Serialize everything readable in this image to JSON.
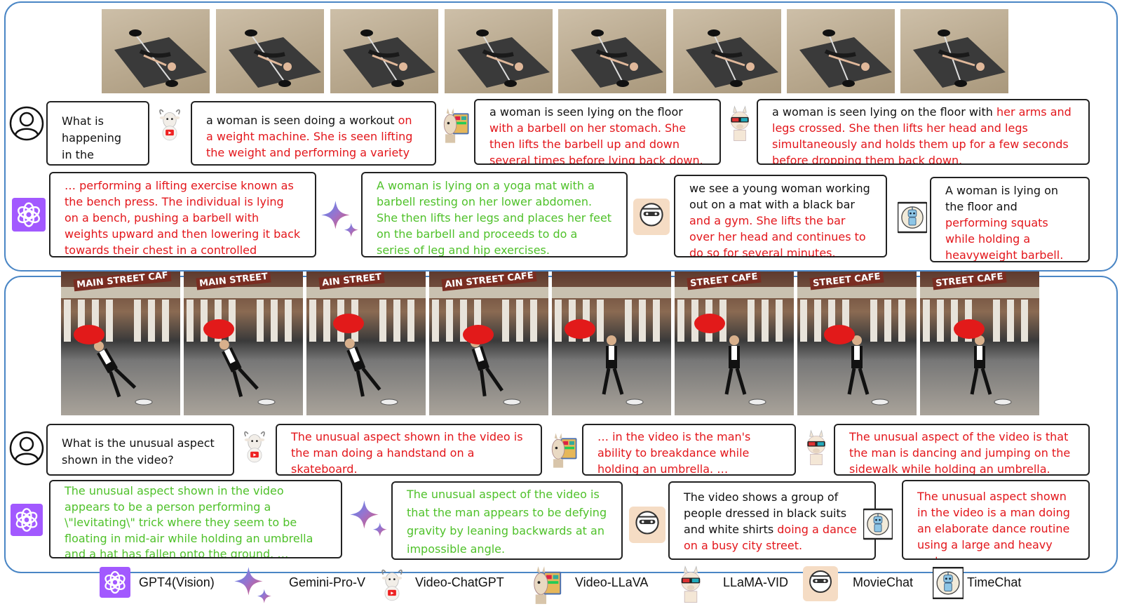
{
  "panel1": {
    "question": "What is happening in the video?",
    "answers": {
      "video_chatgpt": {
        "normal": "a woman is seen doing a workout ",
        "error": "on a weight machine. She is seen lifting the weight and performing a variety of …"
      },
      "video_llava": {
        "normal": "a woman is seen lying on the floor ",
        "error": "with a barbell on her stomach. She then lifts the barbell up and down several times before lying back down."
      },
      "llama_vid": {
        "normal": "a woman is seen lying on the floor with ",
        "error": "her arms and legs crossed. She then lifts her head and legs simultaneously and holds them up for a few seconds before dropping them back down."
      },
      "gpt4v": {
        "error": "… performing a lifting exercise known as the bench press. The individual is lying on a bench, pushing a barbell with weights upward and then lowering it back towards their chest in a controlled manner."
      },
      "gemini": {
        "correct": "A woman is lying on a yoga mat with a barbell resting on her lower abdomen. She then lifts her legs and places her feet on the barbell and proceeds to do a series of leg and hip exercises."
      },
      "moviechat": {
        "normal": "we see a young woman working out on a mat with a black bar ",
        "error": "and a gym. She lifts the bar over her head and continues to do so for several minutes."
      },
      "timechat": {
        "normal": "A woman is lying on the floor and ",
        "error": "performing squats while holding a heavyweight barbell."
      }
    }
  },
  "panel2": {
    "question": "What is the unusual aspect shown in the video?",
    "sign_texts": [
      "MAIN STREET CAF",
      "MAIN STREET",
      "AIN STREET",
      "AIN STREET CAFE",
      "",
      "STREET CAFE",
      "STREET CAFE",
      "STREET CAFE"
    ],
    "answers": {
      "video_chatgpt": {
        "error": "The unusual aspect shown in the video is the man doing a handstand on a skateboard."
      },
      "video_llava": {
        "error": "…  in the video is the man's ability to breakdance while holding an umbrella.  …"
      },
      "llama_vid": {
        "error": "The unusual aspect of the video is that the man is dancing and jumping on the sidewalk while holding an umbrella."
      },
      "gpt4v": {
        "correct": "The unusual aspect shown in the video appears to be a person performing a \\\"levitating\\\" trick where they seem to be floating in mid-air while holding an umbrella and a hat has fallen onto the ground. …"
      },
      "gemini": {
        "correct": "The unusual aspect of the video is that the man appears to be defying gravity by leaning backwards at an impossible angle."
      },
      "moviechat": {
        "normal": "The video shows a group of people dressed in black suits and white shirts ",
        "error": "doing a dance on a busy city street."
      },
      "timechat": {
        "error": "The unusual aspect shown in the video is a man doing an elaborate dance routine using a large and heavy cart."
      }
    }
  },
  "legend": {
    "gpt4v": "GPT4(Vision)",
    "gemini": "Gemini-Pro-V",
    "video_chatgpt": "Video-ChatGPT",
    "video_llava": "Video-LLaVA",
    "llama_vid": "LLaMA-VID",
    "moviechat": "MovieChat",
    "timechat": "TimeChat"
  },
  "moviechat_icon_text": "MovieChat",
  "colors": {
    "panel_border": "#4a86c5",
    "error": "#e3161b",
    "correct": "#4fc12a",
    "gpt_purple": "#a259ff"
  }
}
